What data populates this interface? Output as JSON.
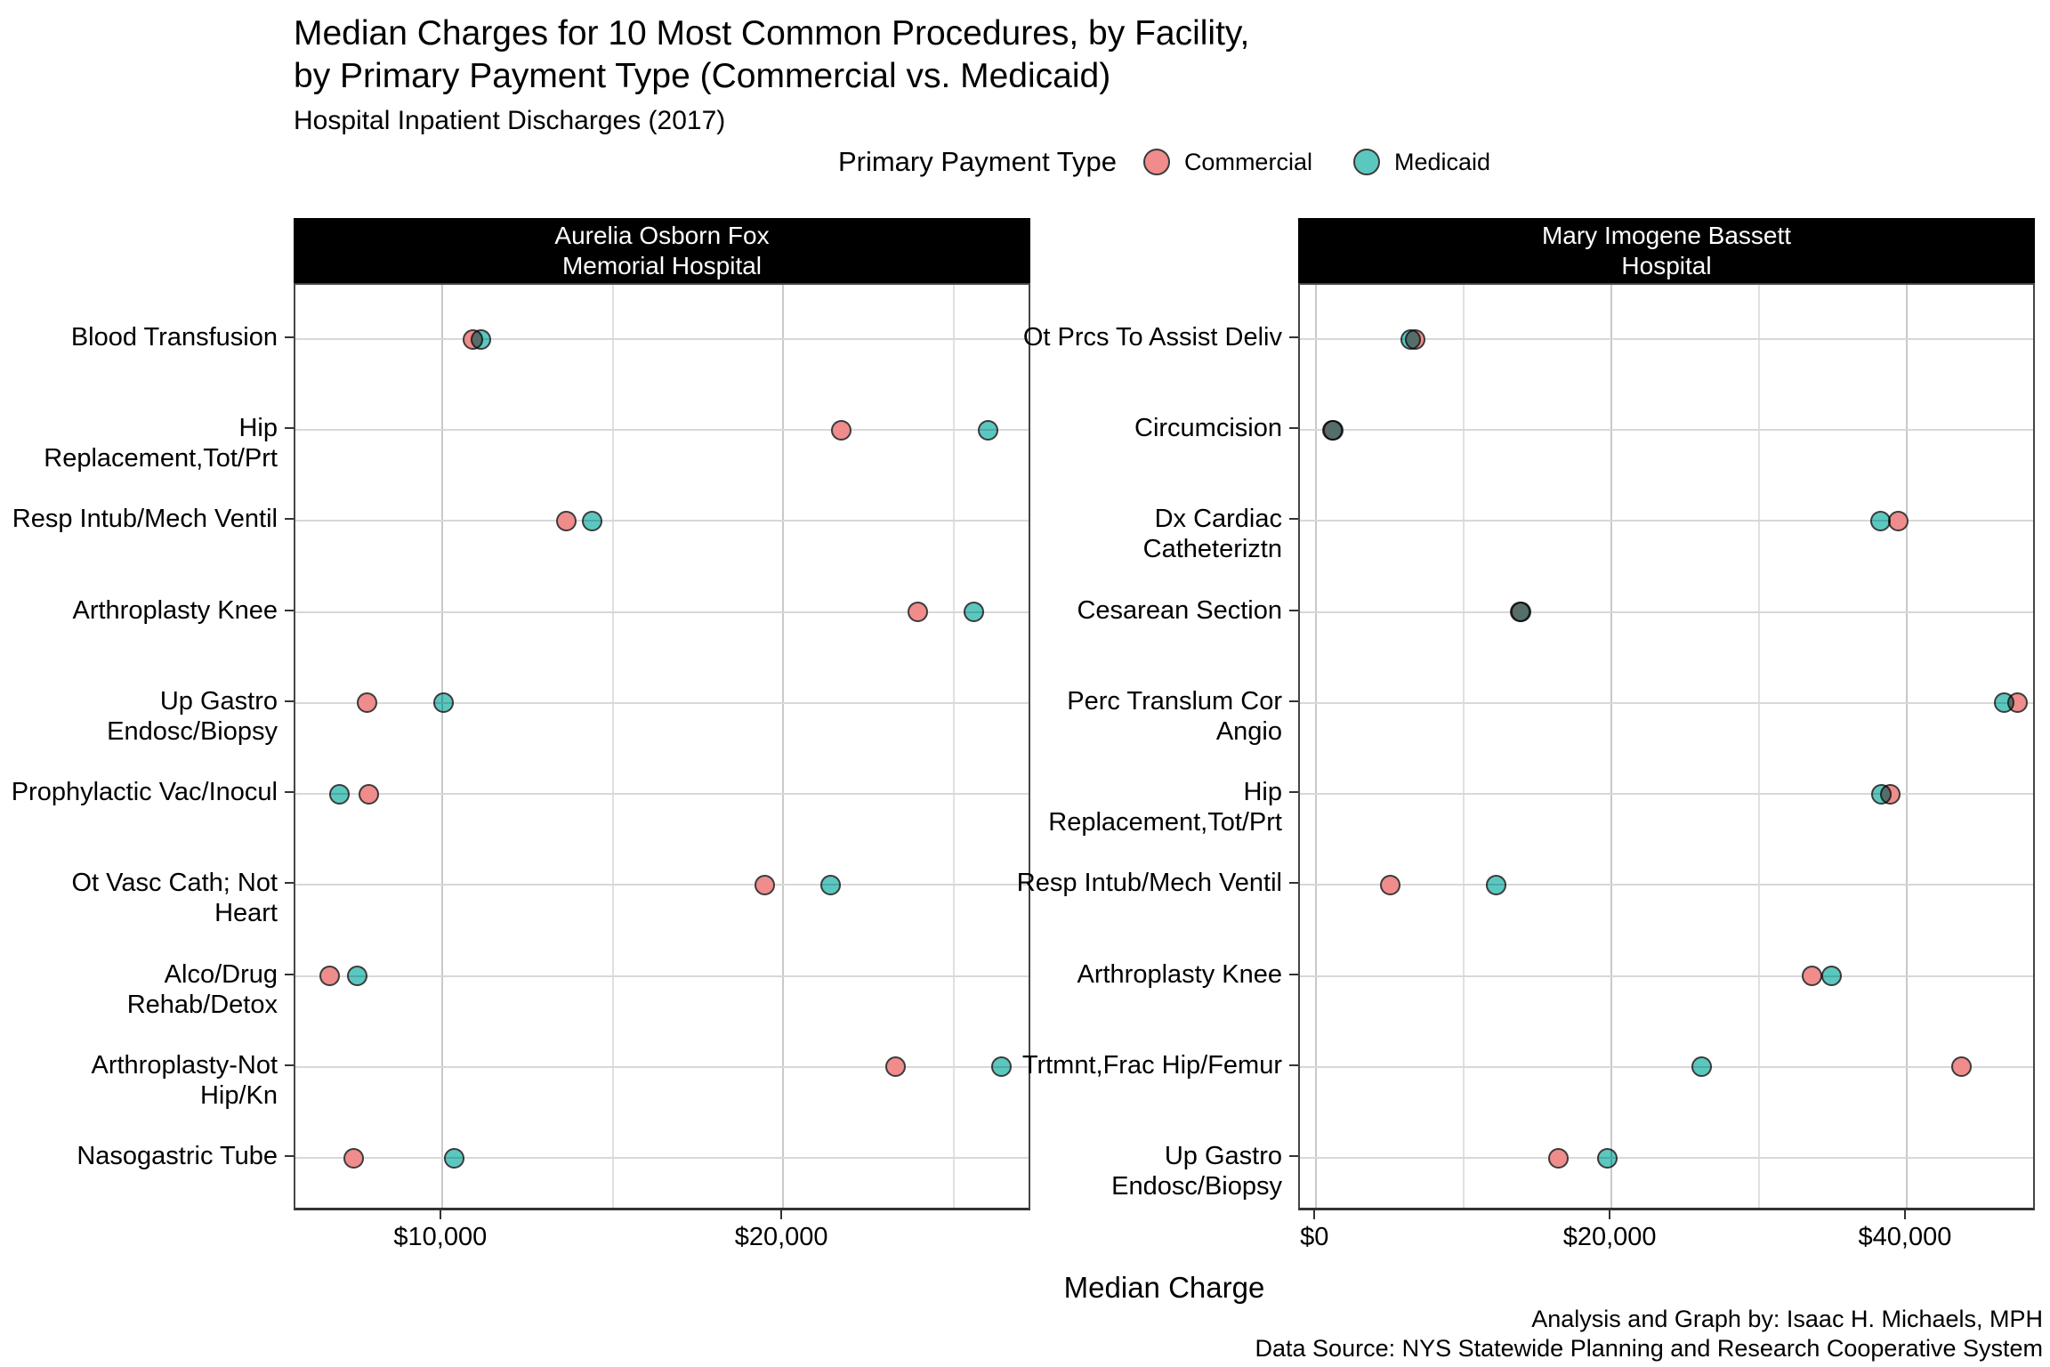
{
  "title": {
    "line1": "Median Charges for 10 Most Common Procedures, by Facility,",
    "line2": "by Primary Payment Type (Commercial vs. Medicaid)",
    "subtitle": "Hospital Inpatient Discharges (2017)"
  },
  "legend": {
    "title": "Primary Payment Type",
    "items": [
      {
        "key": "commercial",
        "label": "Commercial",
        "color": "#F08C8C"
      },
      {
        "key": "medicaid",
        "label": "Medicaid",
        "color": "#5BC8C0"
      }
    ]
  },
  "xlabel": "Median Charge",
  "caption": {
    "line1": "Analysis and Graph by: Isaac H. Michaels, MPH",
    "line2": "Data Source: NYS Statewide Planning and Research Cooperative System"
  },
  "colors": {
    "commercial": "#F08C8C",
    "medicaid": "#5BC8C0",
    "dot_border": "#3b3b3b",
    "strip_bg": "#000000",
    "strip_text": "#ffffff",
    "grid_major": "#c9c9c9",
    "grid_minor": "#e0e0e0",
    "grid_row": "#d8d8d8",
    "panel_border": "#454545"
  },
  "chart_data": {
    "type": "scatter",
    "orientation": "horizontal-dotplot",
    "series_names": [
      "Commercial",
      "Medicaid"
    ],
    "grid": "on",
    "legend_position": "top-center",
    "panels": [
      {
        "facet_line1": "Aurelia Osborn Fox",
        "facet_line2": "Memorial Hospital",
        "x_axis": {
          "min": 5700,
          "max": 27300,
          "ticks": [
            {
              "value": 10000,
              "label": "$10,000"
            },
            {
              "value": 20000,
              "label": "$20,000"
            }
          ],
          "minor_gridlines": [
            15000,
            25000
          ]
        },
        "rows": [
          {
            "procedure": "Blood Transfusion",
            "commercial": 10900,
            "medicaid": 11150
          },
          {
            "procedure": "Hip Replacement,Tot/Prt",
            "commercial": 21700,
            "medicaid": 26000
          },
          {
            "procedure": "Resp Intub/Mech Ventil",
            "commercial": 13650,
            "medicaid": 14400
          },
          {
            "procedure": "Arthroplasty Knee",
            "commercial": 23950,
            "medicaid": 25600
          },
          {
            "procedure": "Up Gastro Endosc/Biopsy",
            "commercial": 7800,
            "medicaid": 10050
          },
          {
            "procedure": "Prophylactic Vac/Inocul",
            "commercial": 7850,
            "medicaid": 7000
          },
          {
            "procedure": "Ot Vasc Cath; Not Heart",
            "commercial": 19450,
            "medicaid": 21400
          },
          {
            "procedure": "Alco/Drug Rehab/Detox",
            "commercial": 6700,
            "medicaid": 7500
          },
          {
            "procedure": "Arthroplasty-Not Hip/Kn",
            "commercial": 23300,
            "medicaid": 26400
          },
          {
            "procedure": "Nasogastric Tube",
            "commercial": 7400,
            "medicaid": 10350
          }
        ]
      },
      {
        "facet_line1": "Mary Imogene Bassett",
        "facet_line2": "Hospital",
        "x_axis": {
          "min": -1100,
          "max": 48800,
          "ticks": [
            {
              "value": 0,
              "label": "$0"
            },
            {
              "value": 20000,
              "label": "$20,000"
            },
            {
              "value": 40000,
              "label": "$40,000"
            }
          ],
          "minor_gridlines": [
            10000,
            30000
          ]
        },
        "rows": [
          {
            "procedure": "Ot Prcs To Assist Deliv",
            "commercial": 6700,
            "medicaid": 6400
          },
          {
            "procedure": "Circumcision",
            "commercial": 1100,
            "medicaid": 1150
          },
          {
            "procedure": "Dx Cardiac Catheteriztn",
            "commercial": 39400,
            "medicaid": 38200
          },
          {
            "procedure": "Cesarean Section",
            "commercial": 13800,
            "medicaid": 13900
          },
          {
            "procedure": "Perc Translum Cor Angio",
            "commercial": 47500,
            "medicaid": 46600
          },
          {
            "procedure": "Hip Replacement,Tot/Prt",
            "commercial": 38900,
            "medicaid": 38300
          },
          {
            "procedure": "Resp Intub/Mech Ventil",
            "commercial": 5000,
            "medicaid": 12200
          },
          {
            "procedure": "Arthroplasty Knee",
            "commercial": 33600,
            "medicaid": 34900
          },
          {
            "procedure": "Trtmnt,Frac Hip/Femur",
            "commercial": 43700,
            "medicaid": 26100
          },
          {
            "procedure": "Up Gastro Endosc/Biopsy",
            "commercial": 16400,
            "medicaid": 19700
          }
        ]
      }
    ]
  }
}
